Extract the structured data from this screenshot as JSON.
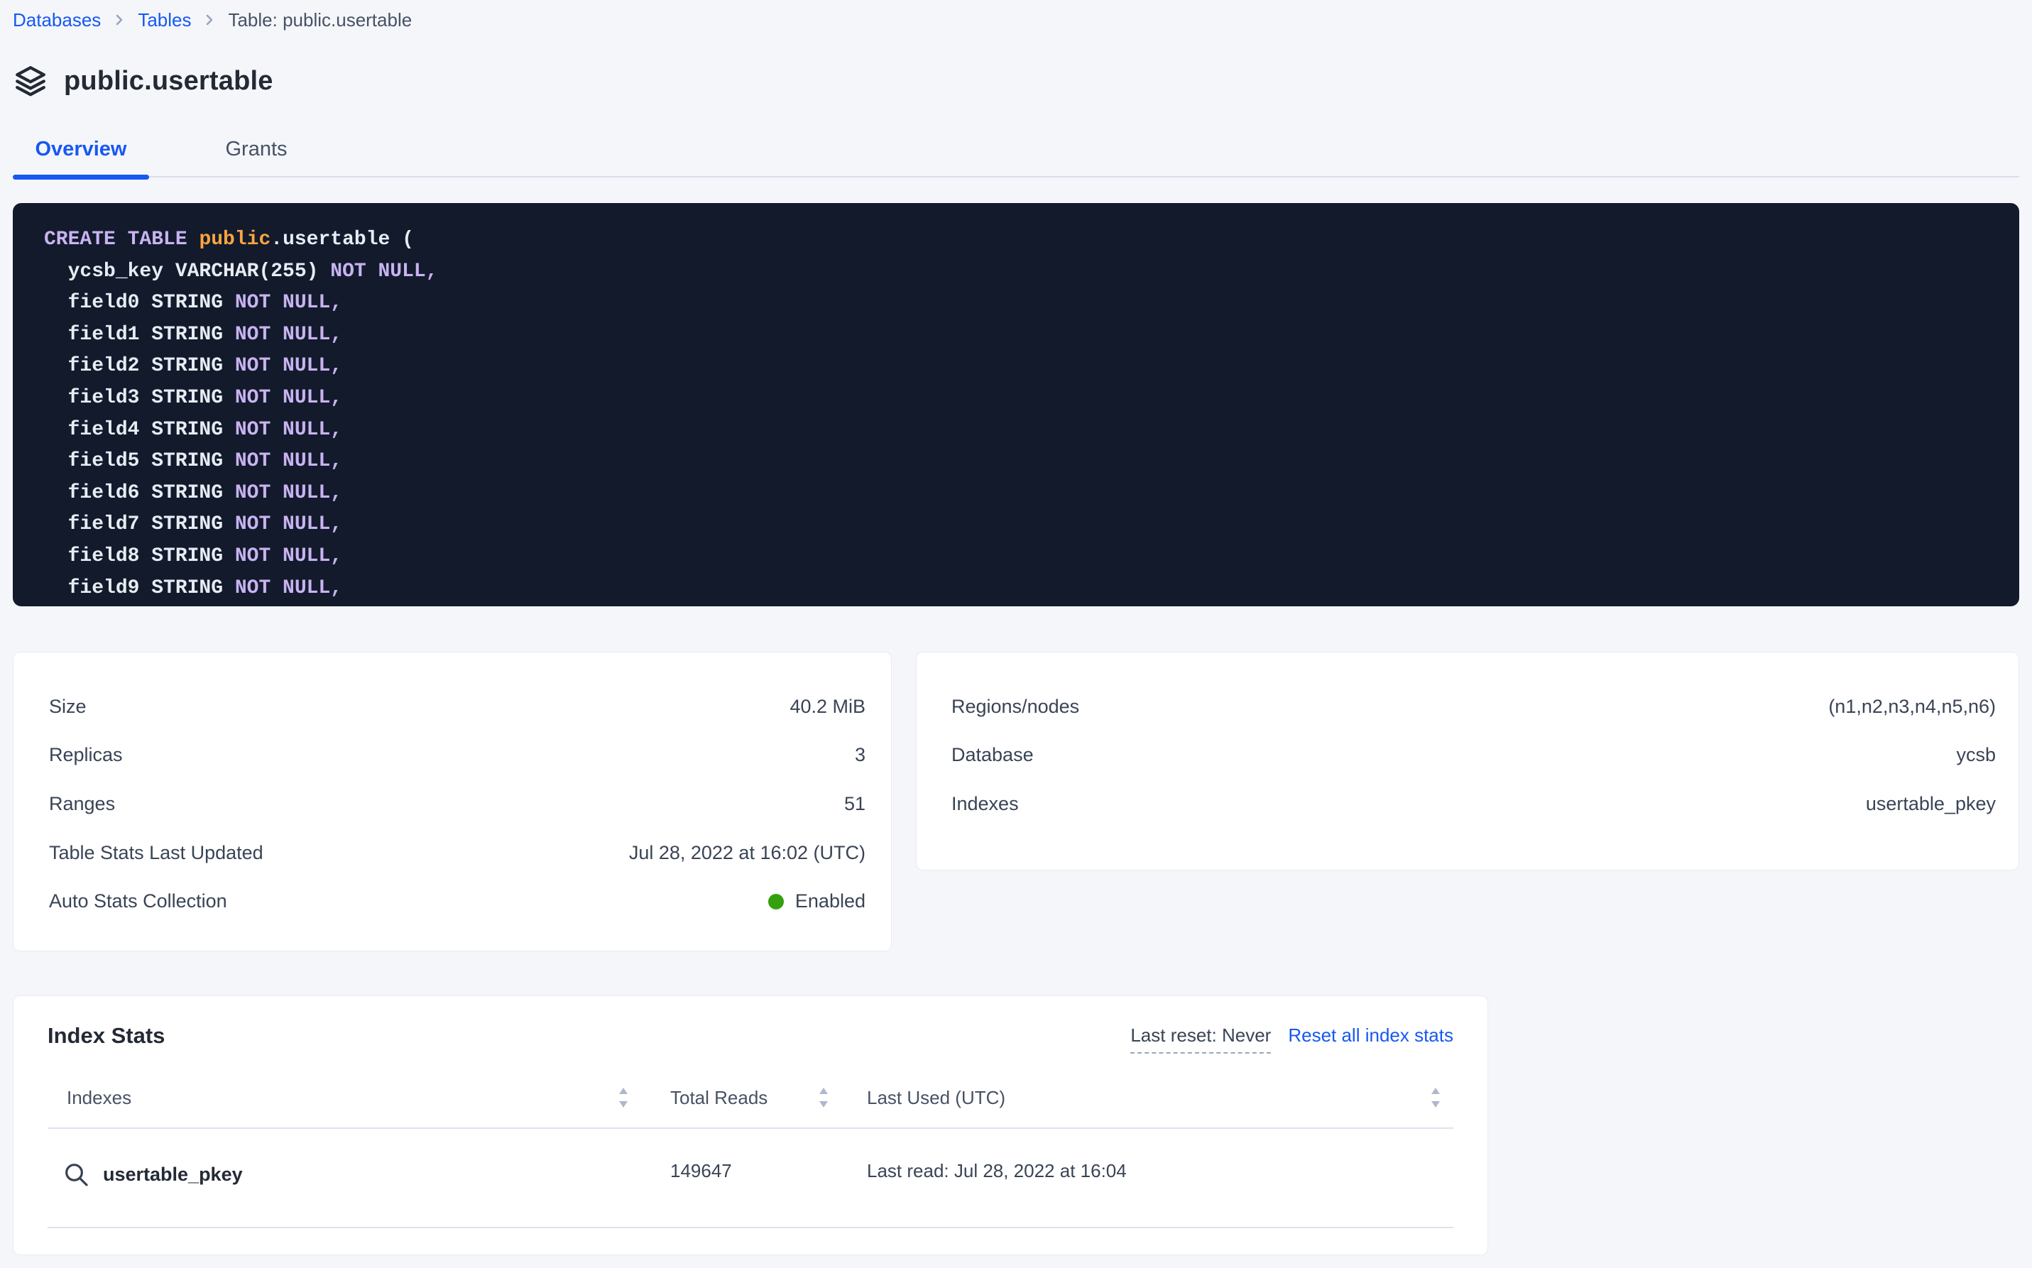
{
  "breadcrumb": {
    "items": [
      {
        "label": "Databases"
      },
      {
        "label": "Tables"
      },
      {
        "label": "Table: public.usertable"
      }
    ]
  },
  "page": {
    "title": "public.usertable"
  },
  "tabs": [
    {
      "label": "Overview",
      "active": true
    },
    {
      "label": "Grants",
      "active": false
    }
  ],
  "code": {
    "lines": [
      {
        "tokens": [
          {
            "cls": "kw",
            "text": "CREATE TABLE "
          },
          {
            "cls": "db",
            "text": "public"
          },
          {
            "cls": "plain",
            "text": ".usertable ("
          }
        ]
      },
      {
        "tokens": [
          {
            "cls": "plain",
            "text": "  ycsb_key VARCHAR(255) "
          },
          {
            "cls": "kw",
            "text": "NOT NULL,"
          }
        ]
      },
      {
        "tokens": [
          {
            "cls": "plain",
            "text": "  field0 STRING "
          },
          {
            "cls": "kw",
            "text": "NOT NULL,"
          }
        ]
      },
      {
        "tokens": [
          {
            "cls": "plain",
            "text": "  field1 STRING "
          },
          {
            "cls": "kw",
            "text": "NOT NULL,"
          }
        ]
      },
      {
        "tokens": [
          {
            "cls": "plain",
            "text": "  field2 STRING "
          },
          {
            "cls": "kw",
            "text": "NOT NULL,"
          }
        ]
      },
      {
        "tokens": [
          {
            "cls": "plain",
            "text": "  field3 STRING "
          },
          {
            "cls": "kw",
            "text": "NOT NULL,"
          }
        ]
      },
      {
        "tokens": [
          {
            "cls": "plain",
            "text": "  field4 STRING "
          },
          {
            "cls": "kw",
            "text": "NOT NULL,"
          }
        ]
      },
      {
        "tokens": [
          {
            "cls": "plain",
            "text": "  field5 STRING "
          },
          {
            "cls": "kw",
            "text": "NOT NULL,"
          }
        ]
      },
      {
        "tokens": [
          {
            "cls": "plain",
            "text": "  field6 STRING "
          },
          {
            "cls": "kw",
            "text": "NOT NULL,"
          }
        ]
      },
      {
        "tokens": [
          {
            "cls": "plain",
            "text": "  field7 STRING "
          },
          {
            "cls": "kw",
            "text": "NOT NULL,"
          }
        ]
      },
      {
        "tokens": [
          {
            "cls": "plain",
            "text": "  field8 STRING "
          },
          {
            "cls": "kw",
            "text": "NOT NULL,"
          }
        ]
      },
      {
        "tokens": [
          {
            "cls": "plain",
            "text": "  field9 STRING "
          },
          {
            "cls": "kw",
            "text": "NOT NULL,"
          }
        ]
      }
    ]
  },
  "stats_left": {
    "rows": [
      {
        "label": "Size",
        "value": "40.2 MiB"
      },
      {
        "label": "Replicas",
        "value": "3"
      },
      {
        "label": "Ranges",
        "value": "51"
      },
      {
        "label": "Table Stats Last Updated",
        "value": "Jul 28, 2022 at 16:02 (UTC)"
      },
      {
        "label": "Auto Stats Collection",
        "value": "Enabled"
      }
    ]
  },
  "stats_right": {
    "rows": [
      {
        "label": "Regions/nodes",
        "value": "(n1,n2,n3,n4,n5,n6)"
      },
      {
        "label": "Database",
        "value": "ycsb"
      },
      {
        "label": "Indexes",
        "value": "usertable_pkey"
      }
    ]
  },
  "index_stats": {
    "title": "Index Stats",
    "last_reset": "Last reset: Never",
    "reset_link": "Reset all index stats",
    "columns": [
      "Indexes",
      "Total Reads",
      "Last Used (UTC)"
    ],
    "rows": [
      {
        "name": "usertable_pkey",
        "total_reads": "149647",
        "last_used": "Last read: Jul 28, 2022 at 16:04"
      }
    ]
  },
  "colors": {
    "accent_blue": "#1758F2",
    "status_green": "#33A10E",
    "page_bg": "#F4F6FA",
    "code_bg": "#121A2C",
    "code_keyword": "#C8B3F0",
    "code_schema": "#FCA43F",
    "code_text": "#E7ECF3"
  }
}
